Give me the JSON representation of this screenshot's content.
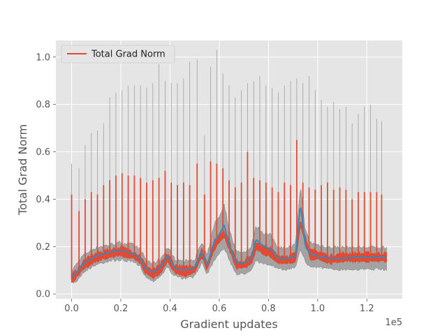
{
  "chart_data": {
    "type": "line",
    "title": "",
    "xlabel": "Gradient updates",
    "ylabel": "Total Grad Norm",
    "x_offset_label": "1e5",
    "xlim": [
      -0.064,
      1.344
    ],
    "ylim": [
      -0.02,
      1.07
    ],
    "x_ticks": [
      0.0,
      0.2,
      0.4,
      0.6,
      0.8,
      1.0,
      1.2
    ],
    "x_tick_labels": [
      "0.0",
      "0.2",
      "0.4",
      "0.6",
      "0.8",
      "1.0",
      "1.2"
    ],
    "y_ticks": [
      0.0,
      0.2,
      0.4,
      0.6,
      0.8,
      1.0
    ],
    "y_tick_labels": [
      "0.0",
      "0.2",
      "0.4",
      "0.6",
      "0.8",
      "1.0"
    ],
    "grid": true,
    "legend_position": "top-left",
    "colors": {
      "raw": "#E24A33",
      "smooth": "#348ABD",
      "band": "#8c8c8c",
      "background": "#E5E5E5",
      "grid": "#ffffff"
    },
    "series": [
      {
        "name": "Total Grad Norm",
        "role": "raw",
        "baseline_x": [
          0.0,
          0.02,
          0.05,
          0.1,
          0.15,
          0.2,
          0.25,
          0.28,
          0.3,
          0.33,
          0.36,
          0.39,
          0.42,
          0.46,
          0.5,
          0.53,
          0.55,
          0.58,
          0.6,
          0.62,
          0.64,
          0.67,
          0.7,
          0.73,
          0.75,
          0.78,
          0.81,
          0.84,
          0.88,
          0.91,
          0.93,
          0.95,
          0.97,
          1.0,
          1.05,
          1.1,
          1.15,
          1.2,
          1.25,
          1.28
        ],
        "baseline_y": [
          0.06,
          0.08,
          0.12,
          0.15,
          0.165,
          0.175,
          0.16,
          0.14,
          0.1,
          0.08,
          0.1,
          0.15,
          0.1,
          0.09,
          0.1,
          0.17,
          0.11,
          0.2,
          0.23,
          0.25,
          0.2,
          0.12,
          0.12,
          0.14,
          0.2,
          0.18,
          0.17,
          0.14,
          0.14,
          0.15,
          0.3,
          0.22,
          0.16,
          0.16,
          0.14,
          0.15,
          0.15,
          0.15,
          0.15,
          0.15
        ],
        "spike_x": [
          0.0,
          0.03,
          0.055,
          0.08,
          0.105,
          0.13,
          0.155,
          0.18,
          0.205,
          0.23,
          0.255,
          0.28,
          0.305,
          0.33,
          0.355,
          0.38,
          0.405,
          0.43,
          0.455,
          0.48,
          0.51,
          0.54,
          0.565,
          0.59,
          0.615,
          0.64,
          0.665,
          0.69,
          0.715,
          0.74,
          0.765,
          0.79,
          0.815,
          0.84,
          0.865,
          0.89,
          0.915,
          0.94,
          0.965,
          0.99,
          1.015,
          1.04,
          1.065,
          1.09,
          1.115,
          1.14,
          1.165,
          1.19,
          1.215,
          1.24,
          1.26
        ],
        "spike_y": [
          0.42,
          0.35,
          0.4,
          0.43,
          0.42,
          0.46,
          0.48,
          0.5,
          0.51,
          0.5,
          0.5,
          0.49,
          0.47,
          0.48,
          0.49,
          0.52,
          0.47,
          0.46,
          0.47,
          0.46,
          0.55,
          0.42,
          0.56,
          0.55,
          0.53,
          0.48,
          0.45,
          0.47,
          0.6,
          0.49,
          0.48,
          0.47,
          0.45,
          0.43,
          0.47,
          0.46,
          0.65,
          0.47,
          0.45,
          0.44,
          0.46,
          0.47,
          0.44,
          0.45,
          0.44,
          0.4,
          0.43,
          0.43,
          0.43,
          0.43,
          0.42
        ]
      },
      {
        "role": "smoothed",
        "x": [
          0.0,
          0.02,
          0.05,
          0.1,
          0.15,
          0.2,
          0.25,
          0.28,
          0.3,
          0.33,
          0.36,
          0.39,
          0.42,
          0.46,
          0.5,
          0.53,
          0.55,
          0.58,
          0.6,
          0.62,
          0.64,
          0.67,
          0.7,
          0.73,
          0.75,
          0.78,
          0.81,
          0.84,
          0.88,
          0.91,
          0.93,
          0.95,
          0.97,
          1.0,
          1.05,
          1.1,
          1.15,
          1.2,
          1.25,
          1.28
        ],
        "y": [
          0.07,
          0.09,
          0.13,
          0.16,
          0.175,
          0.185,
          0.17,
          0.15,
          0.11,
          0.09,
          0.11,
          0.16,
          0.11,
          0.1,
          0.11,
          0.18,
          0.12,
          0.22,
          0.25,
          0.29,
          0.21,
          0.13,
          0.13,
          0.15,
          0.23,
          0.2,
          0.19,
          0.15,
          0.15,
          0.16,
          0.38,
          0.2,
          0.17,
          0.16,
          0.15,
          0.15,
          0.155,
          0.155,
          0.155,
          0.155
        ]
      },
      {
        "role": "band",
        "x": [
          0.0,
          0.02,
          0.05,
          0.1,
          0.15,
          0.2,
          0.25,
          0.28,
          0.3,
          0.33,
          0.36,
          0.39,
          0.42,
          0.46,
          0.5,
          0.53,
          0.55,
          0.58,
          0.6,
          0.62,
          0.64,
          0.67,
          0.7,
          0.73,
          0.75,
          0.78,
          0.81,
          0.84,
          0.88,
          0.91,
          0.93,
          0.95,
          0.97,
          1.0,
          1.05,
          1.1,
          1.15,
          1.2,
          1.25,
          1.28
        ],
        "lower": [
          0.05,
          0.06,
          0.1,
          0.13,
          0.145,
          0.15,
          0.14,
          0.12,
          0.08,
          0.06,
          0.08,
          0.12,
          0.08,
          0.07,
          0.08,
          0.14,
          0.09,
          0.15,
          0.18,
          0.2,
          0.15,
          0.09,
          0.09,
          0.11,
          0.15,
          0.13,
          0.13,
          0.11,
          0.11,
          0.12,
          0.2,
          0.14,
          0.12,
          0.12,
          0.11,
          0.11,
          0.11,
          0.11,
          0.11,
          0.11
        ],
        "upper": [
          0.09,
          0.12,
          0.16,
          0.19,
          0.2,
          0.21,
          0.2,
          0.18,
          0.14,
          0.12,
          0.14,
          0.19,
          0.14,
          0.13,
          0.14,
          0.21,
          0.15,
          0.29,
          0.32,
          0.37,
          0.27,
          0.17,
          0.17,
          0.19,
          0.28,
          0.25,
          0.24,
          0.19,
          0.19,
          0.2,
          0.45,
          0.26,
          0.21,
          0.2,
          0.19,
          0.19,
          0.19,
          0.19,
          0.19,
          0.19
        ],
        "spike_x": [
          0.0,
          0.03,
          0.055,
          0.08,
          0.105,
          0.13,
          0.155,
          0.18,
          0.205,
          0.23,
          0.255,
          0.28,
          0.305,
          0.33,
          0.355,
          0.38,
          0.405,
          0.43,
          0.455,
          0.48,
          0.51,
          0.54,
          0.565,
          0.59,
          0.615,
          0.64,
          0.665,
          0.69,
          0.715,
          0.74,
          0.765,
          0.79,
          0.815,
          0.84,
          0.865,
          0.89,
          0.915,
          0.94,
          0.965,
          0.99,
          1.015,
          1.04,
          1.065,
          1.09,
          1.115,
          1.14,
          1.165,
          1.19,
          1.215,
          1.24,
          1.26
        ],
        "spike_y": [
          0.55,
          0.53,
          0.63,
          0.68,
          0.69,
          0.72,
          0.83,
          0.85,
          0.86,
          0.88,
          0.88,
          0.88,
          0.87,
          0.89,
          0.97,
          0.9,
          0.89,
          0.89,
          0.91,
          0.98,
          0.99,
          0.67,
          0.96,
          1.03,
          0.93,
          0.88,
          0.83,
          0.86,
          0.89,
          0.9,
          0.92,
          0.88,
          0.87,
          0.85,
          0.88,
          0.9,
          0.91,
          0.89,
          0.92,
          0.86,
          0.82,
          0.79,
          0.81,
          0.78,
          0.79,
          0.72,
          0.76,
          0.79,
          0.8,
          0.74,
          0.73
        ]
      }
    ]
  }
}
